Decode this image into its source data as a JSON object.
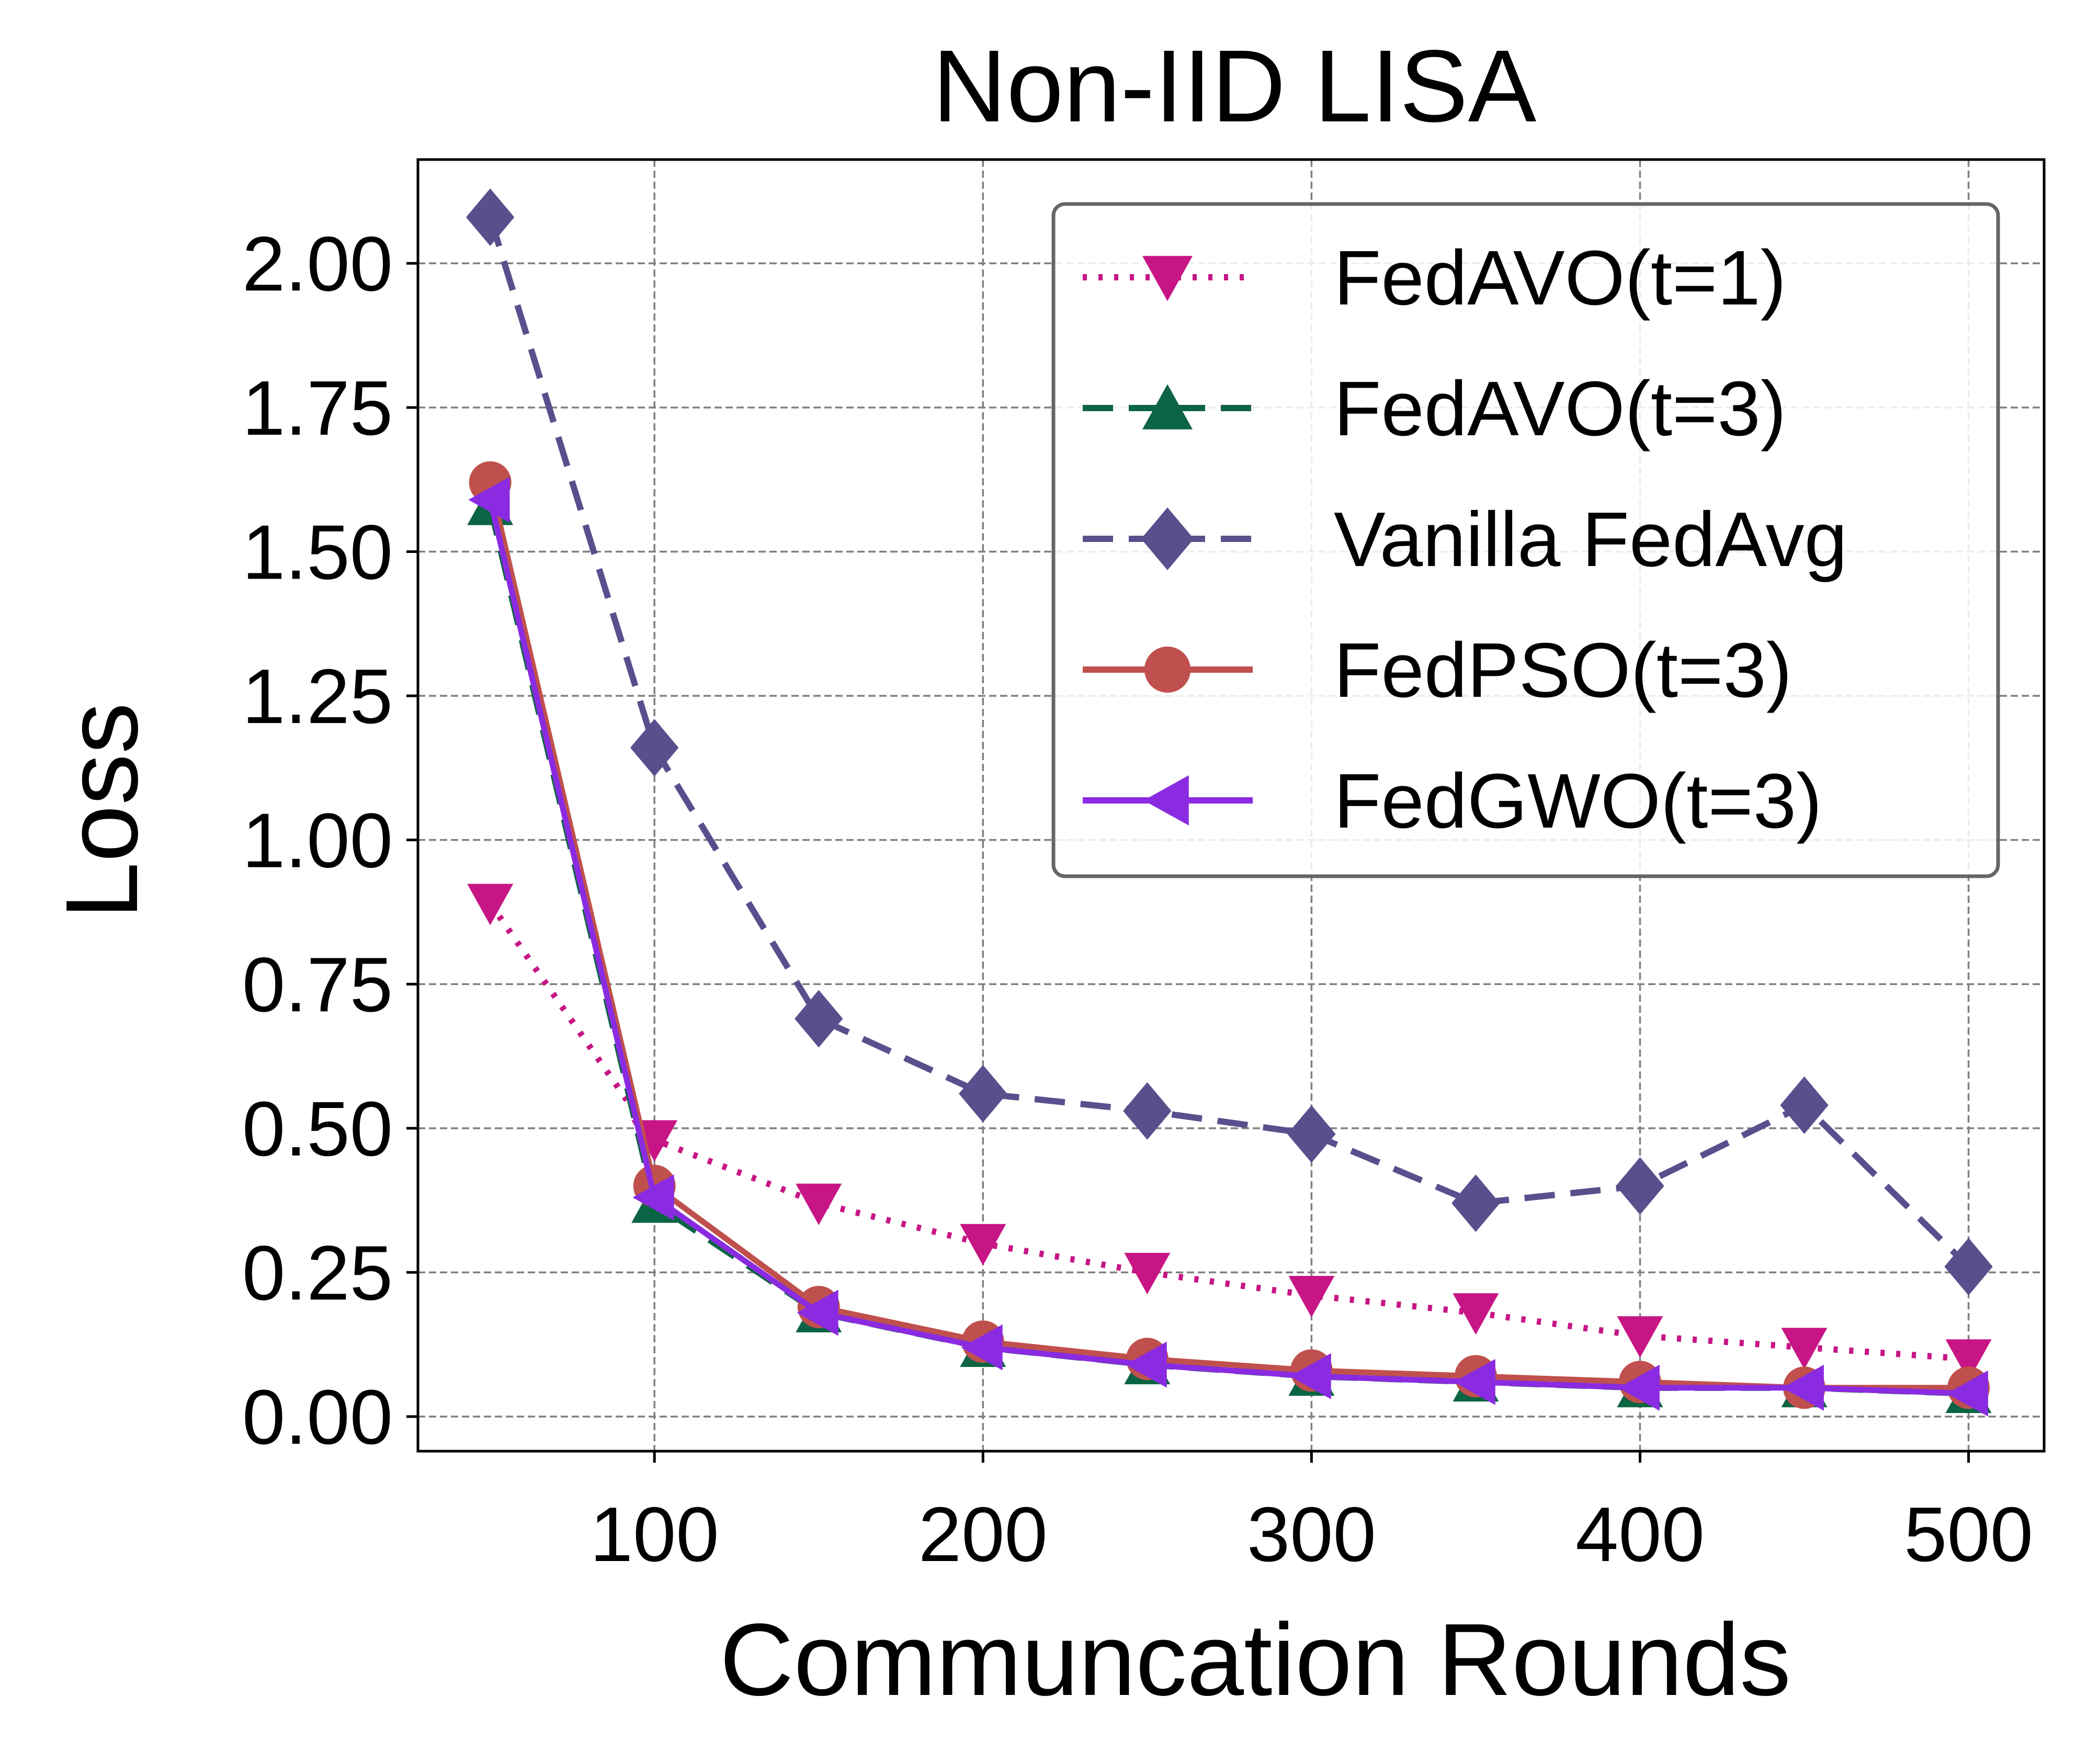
{
  "chart_data": {
    "type": "line",
    "title": "Non-IID LISA",
    "xlabel": "Communcation Rounds",
    "ylabel": "Loss",
    "xlim": [
      28,
      523
    ],
    "ylim": [
      -0.06,
      2.18
    ],
    "xticks": [
      100,
      200,
      300,
      400,
      500
    ],
    "xtick_labels": [
      "100",
      "200",
      "300",
      "400",
      "500"
    ],
    "yticks": [
      0.0,
      0.25,
      0.5,
      0.75,
      1.0,
      1.25,
      1.5,
      1.75,
      2.0
    ],
    "ytick_labels": [
      "0.00",
      "0.25",
      "0.50",
      "0.75",
      "1.00",
      "1.25",
      "1.50",
      "1.75",
      "2.00"
    ],
    "grid": true,
    "legend_position": "top-right",
    "x": [
      50,
      100,
      150,
      200,
      250,
      300,
      350,
      400,
      450,
      500
    ],
    "series": [
      {
        "name": "FedAVO(t=1)",
        "color": "#c71585",
        "marker": "triangle-down",
        "linestyle": "dotted",
        "values": [
          0.89,
          0.48,
          0.37,
          0.3,
          0.25,
          0.21,
          0.18,
          0.14,
          0.12,
          0.1
        ]
      },
      {
        "name": "FedAVO(t=3)",
        "color": "#0b6443",
        "marker": "triangle-up",
        "linestyle": "dashed",
        "values": [
          1.58,
          0.37,
          0.18,
          0.12,
          0.09,
          0.07,
          0.06,
          0.05,
          0.05,
          0.04
        ]
      },
      {
        "name": "Vanilla FedAvg",
        "color": "#58508d",
        "marker": "diamond",
        "linestyle": "dashed",
        "values": [
          2.08,
          1.16,
          0.69,
          0.56,
          0.53,
          0.49,
          0.37,
          0.4,
          0.54,
          0.26
        ]
      },
      {
        "name": "FedPSO(t=3)",
        "color": "#c0504d",
        "marker": "circle",
        "linestyle": "solid",
        "values": [
          1.62,
          0.4,
          0.19,
          0.13,
          0.1,
          0.08,
          0.07,
          0.06,
          0.05,
          0.05
        ]
      },
      {
        "name": "FedGWO(t=3)",
        "color": "#8a2be2",
        "marker": "triangle-left",
        "linestyle": "solid",
        "values": [
          1.59,
          0.38,
          0.18,
          0.12,
          0.09,
          0.07,
          0.06,
          0.05,
          0.05,
          0.04
        ]
      }
    ]
  }
}
